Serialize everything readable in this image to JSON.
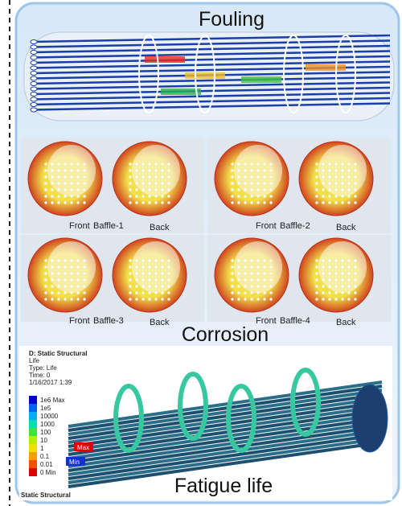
{
  "fouling": {
    "title": "Fouling"
  },
  "corrosion": {
    "title": "Corrosion",
    "panels": [
      {
        "front": "Front",
        "baffle": "Baffle-1",
        "back": "Back"
      },
      {
        "front": "Front",
        "baffle": "Baffle-2",
        "back": "Back"
      },
      {
        "front": "Front",
        "baffle": "Baffle-3",
        "back": "Back"
      },
      {
        "front": "Front",
        "baffle": "Baffle-4",
        "back": "Back"
      }
    ]
  },
  "fatigue": {
    "title": "Fatigue life",
    "header": [
      "D: Static Structural",
      "Life",
      "Type: Life",
      "Time: 0",
      "1/16/2017 1:39"
    ],
    "legend": [
      "1e6 Max",
      "1e5",
      "10000",
      "1000",
      "100",
      "10",
      "1",
      "0.1",
      "0.01",
      "0 Min"
    ],
    "max_tag": "Max",
    "min_tag": "Min",
    "footer": "Static Structural"
  }
}
